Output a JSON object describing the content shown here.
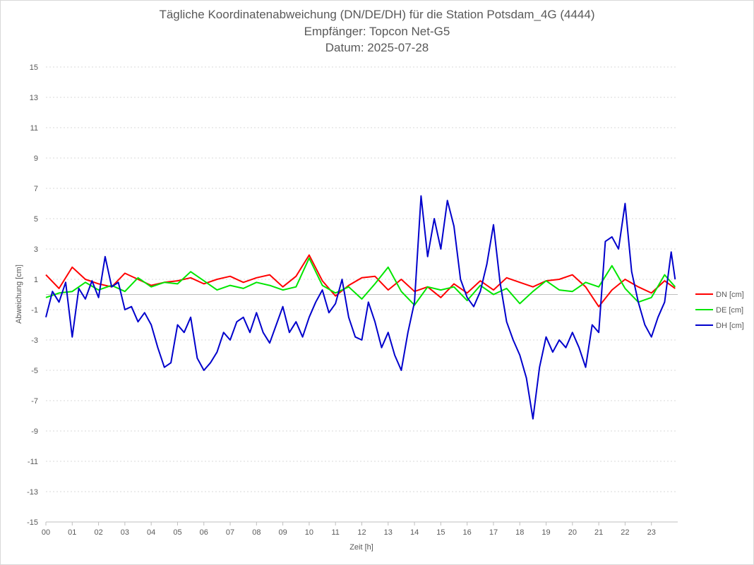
{
  "chart_data": {
    "type": "line",
    "title": "Tägliche Koordinatenabweichung (DN/DE/DH) für die Station Potsdam_4G (4444)",
    "subtitle": "Empfänger: Topcon Net-G5",
    "subtitle2": "Datum: 2025-07-28",
    "xlabel": "Zeit [h]",
    "ylabel": "Abweichung [cm]",
    "xlim": [
      0,
      24
    ],
    "ylim": [
      -15,
      15
    ],
    "x_ticks": [
      "00",
      "01",
      "02",
      "03",
      "04",
      "05",
      "06",
      "07",
      "08",
      "09",
      "10",
      "11",
      "12",
      "13",
      "14",
      "15",
      "16",
      "17",
      "18",
      "19",
      "20",
      "21",
      "22",
      "23"
    ],
    "y_ticks": [
      15,
      13,
      11,
      9,
      7,
      5,
      3,
      1,
      -1,
      -3,
      -5,
      -7,
      -9,
      -11,
      -13,
      -15
    ],
    "grid": true,
    "legend_position": "right",
    "colors": {
      "DN": "#ff0000",
      "DE": "#00e600",
      "DH": "#0000cc",
      "axis": "#bfbfbf",
      "grid": "#d9d9d9"
    },
    "series": [
      {
        "name": "DN [cm]",
        "color": "#ff0000",
        "x": [
          0,
          0.5,
          1,
          1.5,
          2,
          2.5,
          3,
          3.5,
          4,
          4.5,
          5,
          5.5,
          6,
          6.5,
          7,
          7.5,
          8,
          8.5,
          9,
          9.5,
          10,
          10.5,
          11,
          11.5,
          12,
          12.5,
          13,
          13.5,
          14,
          14.5,
          15,
          15.5,
          16,
          16.5,
          17,
          17.5,
          18,
          18.5,
          19,
          19.5,
          20,
          20.5,
          21,
          21.5,
          22,
          22.5,
          23,
          23.5,
          23.9
        ],
        "y": [
          1.3,
          0.4,
          1.8,
          1.0,
          0.7,
          0.5,
          1.4,
          1.0,
          0.6,
          0.8,
          0.9,
          1.1,
          0.7,
          1.0,
          1.2,
          0.8,
          1.1,
          1.3,
          0.5,
          1.2,
          2.6,
          0.9,
          -0.1,
          0.6,
          1.1,
          1.2,
          0.3,
          1.0,
          0.2,
          0.5,
          -0.2,
          0.7,
          0.1,
          0.9,
          0.3,
          1.1,
          0.8,
          0.5,
          0.9,
          1.0,
          1.3,
          0.5,
          -0.8,
          0.3,
          1.0,
          0.5,
          0.1,
          0.9,
          0.4
        ]
      },
      {
        "name": "DE [cm]",
        "color": "#00e600",
        "x": [
          0,
          0.5,
          1,
          1.5,
          2,
          2.5,
          3,
          3.5,
          4,
          4.5,
          5,
          5.5,
          6,
          6.5,
          7,
          7.5,
          8,
          8.5,
          9,
          9.5,
          10,
          10.5,
          11,
          11.5,
          12,
          12.5,
          13,
          13.5,
          14,
          14.5,
          15,
          15.5,
          16,
          16.5,
          17,
          17.5,
          18,
          18.5,
          19,
          19.5,
          20,
          20.5,
          21,
          21.5,
          22,
          22.5,
          23,
          23.5,
          23.9
        ],
        "y": [
          -0.2,
          0.1,
          0.2,
          0.8,
          0.3,
          0.6,
          0.2,
          1.1,
          0.5,
          0.8,
          0.7,
          1.5,
          0.9,
          0.3,
          0.6,
          0.4,
          0.8,
          0.6,
          0.3,
          0.5,
          2.4,
          0.6,
          0.1,
          0.5,
          -0.3,
          0.7,
          1.8,
          0.2,
          -0.7,
          0.5,
          0.3,
          0.5,
          -0.4,
          0.6,
          0.0,
          0.4,
          -0.6,
          0.2,
          0.9,
          0.3,
          0.2,
          0.8,
          0.5,
          1.9,
          0.4,
          -0.5,
          -0.2,
          1.3,
          0.5
        ]
      },
      {
        "name": "DH [cm]",
        "color": "#0000cc",
        "x": [
          0,
          0.25,
          0.5,
          0.75,
          1,
          1.25,
          1.5,
          1.75,
          2,
          2.25,
          2.5,
          2.75,
          3,
          3.25,
          3.5,
          3.75,
          4,
          4.25,
          4.5,
          4.75,
          5,
          5.25,
          5.5,
          5.75,
          6,
          6.25,
          6.5,
          6.75,
          7,
          7.25,
          7.5,
          7.75,
          8,
          8.25,
          8.5,
          8.75,
          9,
          9.25,
          9.5,
          9.75,
          10,
          10.25,
          10.5,
          10.75,
          11,
          11.25,
          11.5,
          11.75,
          12,
          12.25,
          12.5,
          12.75,
          13,
          13.25,
          13.5,
          13.75,
          14,
          14.25,
          14.5,
          14.75,
          15,
          15.25,
          15.5,
          15.75,
          16,
          16.25,
          16.5,
          16.75,
          17,
          17.25,
          17.5,
          17.75,
          18,
          18.25,
          18.5,
          18.75,
          19,
          19.25,
          19.5,
          19.75,
          20,
          20.25,
          20.5,
          20.75,
          21,
          21.25,
          21.5,
          21.75,
          22,
          22.25,
          22.5,
          22.75,
          23,
          23.25,
          23.5,
          23.75,
          23.9
        ],
        "y": [
          -1.5,
          0.2,
          -0.5,
          0.8,
          -2.8,
          0.4,
          -0.3,
          0.9,
          -0.2,
          2.5,
          0.5,
          0.8,
          -1.0,
          -0.8,
          -1.8,
          -1.2,
          -2.0,
          -3.5,
          -4.8,
          -4.5,
          -2.0,
          -2.5,
          -1.5,
          -4.2,
          -5.0,
          -4.5,
          -3.8,
          -2.5,
          -3.0,
          -1.8,
          -1.5,
          -2.5,
          -1.2,
          -2.5,
          -3.2,
          -2.0,
          -0.8,
          -2.5,
          -1.8,
          -2.8,
          -1.5,
          -0.5,
          0.3,
          -1.2,
          -0.6,
          1.0,
          -1.5,
          -2.8,
          -3.0,
          -0.5,
          -1.8,
          -3.5,
          -2.5,
          -4.0,
          -5.0,
          -2.5,
          -0.5,
          6.5,
          2.5,
          5.0,
          3.0,
          6.2,
          4.5,
          1.0,
          -0.2,
          -0.8,
          0.2,
          2.0,
          4.6,
          0.8,
          -1.8,
          -3.0,
          -4.0,
          -5.5,
          -8.2,
          -4.8,
          -2.8,
          -3.8,
          -3.0,
          -3.5,
          -2.5,
          -3.5,
          -4.8,
          -2.0,
          -2.5,
          3.5,
          3.8,
          3.0,
          6.0,
          1.5,
          -0.5,
          -2.0,
          -2.8,
          -1.5,
          -0.5,
          2.8,
          1.0
        ]
      }
    ]
  }
}
